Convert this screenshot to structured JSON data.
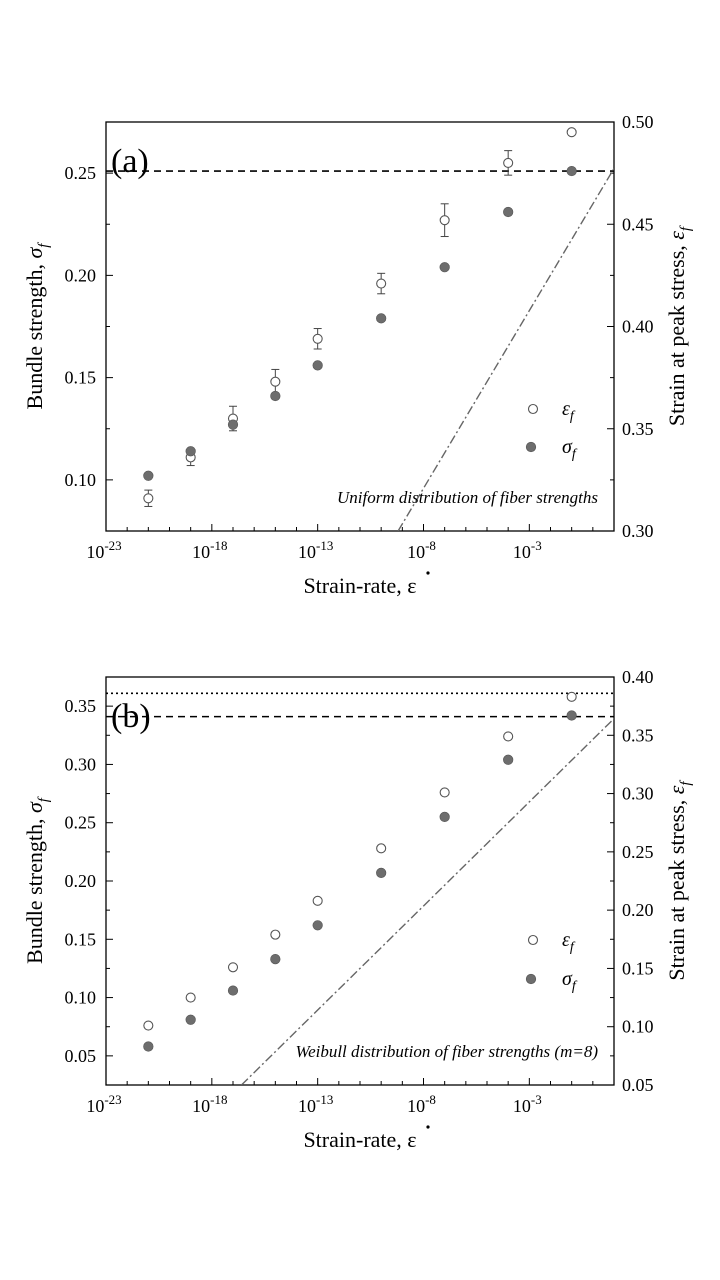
{
  "chart_data": [
    {
      "type": "scatter",
      "panel_label": "(a)",
      "annotation": "Uniform distribution of fiber strengths",
      "xlabel": "Strain-rate, ε̇",
      "xlabel_main": "Strain-rate, ",
      "xlabel_symbol": "ε",
      "xscale": "log",
      "xlim_exp": [
        -23,
        1
      ],
      "xticks": [
        {
          "exp": -23,
          "base": "10",
          "sup": "-23"
        },
        {
          "exp": -18,
          "base": "10",
          "sup": "-18"
        },
        {
          "exp": -13,
          "base": "10",
          "sup": "-13"
        },
        {
          "exp": -8,
          "base": "10",
          "sup": "-8"
        },
        {
          "exp": -3,
          "base": "10",
          "sup": "-3"
        }
      ],
      "ylabel_left": "Bundle strength, σf",
      "ylabel_left_main": "Bundle strength, ",
      "ylabel_left_symbol": "σ",
      "ylabel_left_sub": "f",
      "ylim_left": [
        0.075,
        0.275
      ],
      "yticks_left": [
        "0.10",
        "0.15",
        "0.20",
        "0.25"
      ],
      "ylabel_right": "Strain at peak stress, εf",
      "ylabel_right_main": "Strain at peak stress, ",
      "ylabel_right_symbol": "ε",
      "ylabel_right_sub": "f",
      "ylim_right": [
        0.3,
        0.5
      ],
      "yticks_right": [
        "0.30",
        "0.35",
        "0.40",
        "0.45",
        "0.50"
      ],
      "legend": {
        "position": "lower-right",
        "entries": [
          {
            "symbol": "ε",
            "sub": "f",
            "marker": "open"
          },
          {
            "symbol": "σ",
            "sub": "f",
            "marker": "filled"
          }
        ]
      },
      "series": [
        {
          "name": "εf",
          "axis": "right",
          "marker": "open",
          "x_exp": [
            -21,
            -19,
            -17,
            -15,
            -13,
            -10,
            -7,
            -4,
            -1
          ],
          "values": [
            0.316,
            0.336,
            0.355,
            0.373,
            0.394,
            0.421,
            0.452,
            0.48,
            0.495
          ],
          "errors": [
            0.004,
            0.004,
            0.006,
            0.006,
            0.005,
            0.005,
            0.008,
            0.006,
            0
          ]
        },
        {
          "name": "σf",
          "axis": "left",
          "marker": "filled",
          "x_exp": [
            -21,
            -19,
            -17,
            -15,
            -13,
            -10,
            -7,
            -4,
            -1
          ],
          "values": [
            0.102,
            0.114,
            0.127,
            0.141,
            0.156,
            0.179,
            0.204,
            0.231,
            0.251
          ]
        }
      ],
      "reference_lines": [
        {
          "style": "dashed",
          "axis": "left",
          "y": 0.251
        },
        {
          "style": "dashdot",
          "axis": "left",
          "from": {
            "x_exp": -9.2,
            "y": 0.075
          },
          "to": {
            "x_exp": 1,
            "y": 0.2523
          }
        }
      ]
    },
    {
      "type": "scatter",
      "panel_label": "(b)",
      "annotation": "Weibull distribution of fiber strengths (m=8)",
      "xlabel": "Strain-rate, ε̇",
      "xlabel_main": "Strain-rate, ",
      "xlabel_symbol": "ε",
      "xscale": "log",
      "xlim_exp": [
        -23,
        1
      ],
      "xticks": [
        {
          "exp": -23,
          "base": "10",
          "sup": "-23"
        },
        {
          "exp": -18,
          "base": "10",
          "sup": "-18"
        },
        {
          "exp": -13,
          "base": "10",
          "sup": "-13"
        },
        {
          "exp": -8,
          "base": "10",
          "sup": "-8"
        },
        {
          "exp": -3,
          "base": "10",
          "sup": "-3"
        }
      ],
      "ylabel_left": "Bundle strength, σf",
      "ylabel_left_main": "Bundle strength, ",
      "ylabel_left_symbol": "σ",
      "ylabel_left_sub": "f",
      "ylim_left": [
        0.025,
        0.375
      ],
      "yticks_left": [
        "0.05",
        "0.10",
        "0.15",
        "0.20",
        "0.25",
        "0.30",
        "0.35"
      ],
      "ylabel_right": "Strain at peak stress, εf",
      "ylabel_right_main": "Strain at peak stress, ",
      "ylabel_right_symbol": "ε",
      "ylabel_right_sub": "f",
      "ylim_right": [
        0.05,
        0.4
      ],
      "yticks_right": [
        "0.05",
        "0.10",
        "0.15",
        "0.20",
        "0.25",
        "0.30",
        "0.35",
        "0.40"
      ],
      "legend": {
        "position": "lower-right",
        "entries": [
          {
            "symbol": "ε",
            "sub": "f",
            "marker": "open"
          },
          {
            "symbol": "σ",
            "sub": "f",
            "marker": "filled"
          }
        ]
      },
      "series": [
        {
          "name": "εf",
          "axis": "right",
          "marker": "open",
          "x_exp": [
            -21,
            -19,
            -17,
            -15,
            -13,
            -10,
            -7,
            -4,
            -1
          ],
          "values": [
            0.101,
            0.125,
            0.151,
            0.179,
            0.208,
            0.253,
            0.301,
            0.349,
            0.383
          ]
        },
        {
          "name": "σf",
          "axis": "left",
          "marker": "filled",
          "x_exp": [
            -21,
            -19,
            -17,
            -15,
            -13,
            -10,
            -7,
            -4,
            -1
          ],
          "values": [
            0.058,
            0.081,
            0.106,
            0.133,
            0.162,
            0.207,
            0.255,
            0.304,
            0.342
          ]
        }
      ],
      "reference_lines": [
        {
          "style": "dotted",
          "axis": "right",
          "y": 0.386
        },
        {
          "style": "dashed",
          "axis": "left",
          "y": 0.341
        },
        {
          "style": "dashdot",
          "axis": "left",
          "from": {
            "x_exp": -16.6,
            "y": 0.025
          },
          "to": {
            "x_exp": 1,
            "y": 0.3393
          }
        }
      ]
    }
  ]
}
